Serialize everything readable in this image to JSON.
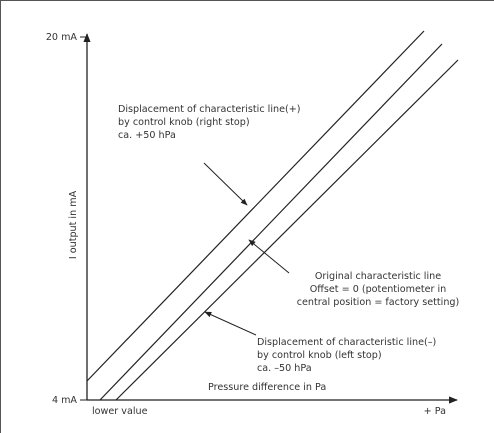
{
  "diagram": {
    "y_axis": {
      "label": "I output in mA",
      "tick_top": "20 mA",
      "tick_bottom": "4 mA"
    },
    "x_axis": {
      "label": "Pressure difference in Pa",
      "left_label": "lower value",
      "right_label": "+ Pa"
    },
    "annotation_plus": [
      "Displacement of characteristic line(+)",
      "by control knob (right stop)",
      "ca. +50 hPa"
    ],
    "annotation_original": [
      "Original characteristic line",
      "Offset = 0 (potentiometer in",
      "central position = factory setting)"
    ],
    "annotation_minus": [
      "Displacement of characteristic line(–)",
      "by control knob (left stop)",
      "ca. –50 hPa"
    ]
  }
}
